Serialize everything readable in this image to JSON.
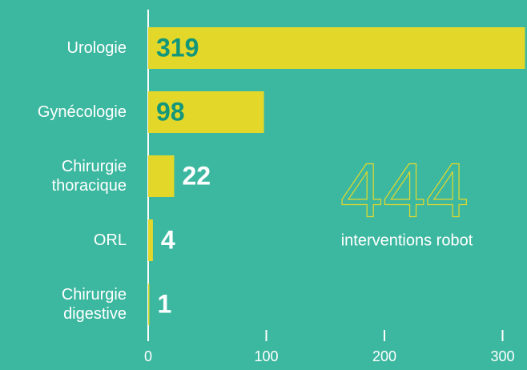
{
  "chart_data": {
    "type": "bar",
    "orientation": "horizontal",
    "categories": [
      "Urologie",
      "Gynécologie",
      "Chirurgie thoracique",
      "ORL",
      "Chirurgie digestive"
    ],
    "values": [
      319,
      98,
      22,
      4,
      1
    ],
    "color": "#e3d82a",
    "xlim": [
      0,
      320
    ],
    "xticks": [
      0,
      100,
      200,
      300
    ],
    "annotation_number": "444",
    "annotation_text": "interventions robot"
  }
}
